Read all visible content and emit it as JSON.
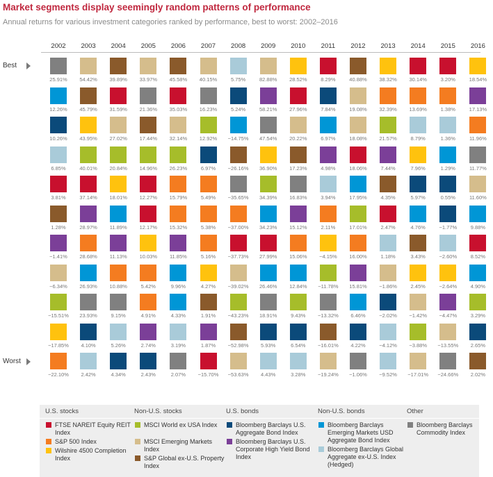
{
  "title": "Market segments display seemingly random patterns of performance",
  "subtitle": "Annual returns for various investment categories ranked by performance, best to worst: 2002–2016",
  "rank_labels": {
    "best": "Best",
    "worst": "Worst"
  },
  "colors": {
    "ftse_nareit": "#c8102e",
    "sp500": "#f47c20",
    "wilshire4500": "#ffc20e",
    "msci_world": "#a6bd2a",
    "msci_em": "#d5bd8c",
    "sp_global_prop": "#8a5a2b",
    "bb_us_agg": "#0b4a7a",
    "bb_us_hy": "#7b3f98",
    "bb_em_usd": "#0096d6",
    "bb_global_agg": "#a9cbd9",
    "bb_commodity": "#808080"
  },
  "chart_data": {
    "type": "table",
    "years": [
      "2002",
      "2003",
      "2004",
      "2005",
      "2006",
      "2007",
      "2008",
      "2009",
      "2010",
      "2011",
      "2012",
      "2013",
      "2014",
      "2015",
      "2016"
    ],
    "columns": [
      {
        "year": "2002",
        "cells": [
          [
            "bb_commodity",
            "25.91%"
          ],
          [
            "bb_em_usd",
            "12.26%"
          ],
          [
            "bb_us_agg",
            "10.26%"
          ],
          [
            "bb_global_agg",
            "6.85%"
          ],
          [
            "ftse_nareit",
            "3.81%"
          ],
          [
            "sp_global_prop",
            "1.28%"
          ],
          [
            "bb_us_hy",
            "−1.41%"
          ],
          [
            "msci_em",
            "−6.34%"
          ],
          [
            "msci_world",
            "−15.51%"
          ],
          [
            "wilshire4500",
            "−17.85%"
          ],
          [
            "sp500",
            "−22.10%"
          ]
        ]
      },
      {
        "year": "2003",
        "cells": [
          [
            "msci_em",
            "54.42%"
          ],
          [
            "sp_global_prop",
            "45.79%"
          ],
          [
            "wilshire4500",
            "43.95%"
          ],
          [
            "msci_world",
            "40.01%"
          ],
          [
            "ftse_nareit",
            "37.14%"
          ],
          [
            "bb_us_hy",
            "28.97%"
          ],
          [
            "sp500",
            "28.68%"
          ],
          [
            "bb_em_usd",
            "26.93%"
          ],
          [
            "bb_commodity",
            "23.93%"
          ],
          [
            "bb_us_agg",
            "4.10%"
          ],
          [
            "bb_global_agg",
            "2.42%"
          ]
        ]
      },
      {
        "year": "2004",
        "cells": [
          [
            "sp_global_prop",
            "39.89%"
          ],
          [
            "ftse_nareit",
            "31.59%"
          ],
          [
            "msci_em",
            "27.02%"
          ],
          [
            "msci_world",
            "20.84%"
          ],
          [
            "wilshire4500",
            "18.01%"
          ],
          [
            "bb_em_usd",
            "11.89%"
          ],
          [
            "bb_us_hy",
            "11.13%"
          ],
          [
            "sp500",
            "10.88%"
          ],
          [
            "bb_commodity",
            "9.15%"
          ],
          [
            "bb_global_agg",
            "5.26%"
          ],
          [
            "bb_us_agg",
            "4.34%"
          ]
        ]
      },
      {
        "year": "2005",
        "cells": [
          [
            "msci_em",
            "33.97%"
          ],
          [
            "bb_commodity",
            "21.36%"
          ],
          [
            "sp_global_prop",
            "17.44%"
          ],
          [
            "msci_world",
            "14.96%"
          ],
          [
            "ftse_nareit",
            "12.27%"
          ],
          [
            "ftse_nareit",
            "12.17%"
          ],
          [
            "wilshire4500",
            "10.03%"
          ],
          [
            "sp500",
            "5.42%"
          ],
          [
            "sp500",
            "4.91%"
          ],
          [
            "bb_us_hy",
            "2.74%"
          ],
          [
            "bb_us_agg",
            "2.43%"
          ]
        ]
      },
      {
        "year": "2006",
        "cells": [
          [
            "sp_global_prop",
            "45.58%"
          ],
          [
            "ftse_nareit",
            "35.03%"
          ],
          [
            "msci_em",
            "32.14%"
          ],
          [
            "msci_world",
            "26.23%"
          ],
          [
            "sp500",
            "15.79%"
          ],
          [
            "sp500",
            "15.32%"
          ],
          [
            "bb_us_hy",
            "11.85%"
          ],
          [
            "bb_em_usd",
            "9.96%"
          ],
          [
            "bb_em_usd",
            "4.33%"
          ],
          [
            "bb_global_agg",
            "3.19%"
          ],
          [
            "bb_commodity",
            "2.07%"
          ]
        ]
      },
      {
        "year": "2007",
        "cells": [
          [
            "msci_em",
            "40.15%"
          ],
          [
            "bb_commodity",
            "16.23%"
          ],
          [
            "msci_world",
            "12.92%"
          ],
          [
            "bb_us_agg",
            "6.97%"
          ],
          [
            "sp500",
            "5.49%"
          ],
          [
            "sp500",
            "5.38%"
          ],
          [
            "sp500",
            "5.16%"
          ],
          [
            "wilshire4500",
            "4.27%"
          ],
          [
            "sp_global_prop",
            "1.91%"
          ],
          [
            "bb_us_hy",
            "1.87%"
          ],
          [
            "ftse_nareit",
            "−15.70%"
          ]
        ]
      },
      {
        "year": "2008",
        "cells": [
          [
            "bb_global_agg",
            "5.75%"
          ],
          [
            "bb_us_agg",
            "5.24%"
          ],
          [
            "bb_em_usd",
            "−14.75%"
          ],
          [
            "sp_global_prop",
            "−26.16%"
          ],
          [
            "bb_commodity",
            "−35.65%"
          ],
          [
            "sp500",
            "−37.00%"
          ],
          [
            "ftse_nareit",
            "−37.73%"
          ],
          [
            "msci_em",
            "−39.02%"
          ],
          [
            "msci_world",
            "−43.23%"
          ],
          [
            "sp_global_prop",
            "−52.98%"
          ],
          [
            "msci_em",
            "−53.63%"
          ]
        ]
      },
      {
        "year": "2009",
        "cells": [
          [
            "msci_em",
            "82.88%"
          ],
          [
            "bb_us_hy",
            "58.21%"
          ],
          [
            "bb_commodity",
            "47.54%"
          ],
          [
            "wilshire4500",
            "36.90%"
          ],
          [
            "msci_world",
            "34.39%"
          ],
          [
            "bb_em_usd",
            "34.23%"
          ],
          [
            "ftse_nareit",
            "27.99%"
          ],
          [
            "bb_em_usd",
            "26.46%"
          ],
          [
            "bb_commodity",
            "18.91%"
          ],
          [
            "bb_us_agg",
            "5.93%"
          ],
          [
            "bb_global_agg",
            "4.43%"
          ]
        ]
      },
      {
        "year": "2010",
        "cells": [
          [
            "wilshire4500",
            "28.52%"
          ],
          [
            "ftse_nareit",
            "27.96%"
          ],
          [
            "msci_em",
            "20.22%"
          ],
          [
            "sp_global_prop",
            "17.23%"
          ],
          [
            "bb_commodity",
            "16.83%"
          ],
          [
            "bb_us_hy",
            "15.12%"
          ],
          [
            "sp500",
            "15.06%"
          ],
          [
            "bb_em_usd",
            "12.84%"
          ],
          [
            "msci_world",
            "9.43%"
          ],
          [
            "bb_us_agg",
            "6.54%"
          ],
          [
            "bb_global_agg",
            "3.28%"
          ]
        ]
      },
      {
        "year": "2011",
        "cells": [
          [
            "ftse_nareit",
            "8.29%"
          ],
          [
            "bb_us_agg",
            "7.84%"
          ],
          [
            "bb_em_usd",
            "6.97%"
          ],
          [
            "bb_us_hy",
            "4.98%"
          ],
          [
            "bb_global_agg",
            "3.94%"
          ],
          [
            "sp500",
            "2.11%"
          ],
          [
            "wilshire4500",
            "−4.15%"
          ],
          [
            "msci_world",
            "−11.78%"
          ],
          [
            "bb_commodity",
            "−13.32%"
          ],
          [
            "sp_global_prop",
            "−16.01%"
          ],
          [
            "msci_em",
            "−19.24%"
          ]
        ]
      },
      {
        "year": "2012",
        "cells": [
          [
            "sp_global_prop",
            "40.88%"
          ],
          [
            "msci_em",
            "19.08%"
          ],
          [
            "msci_em",
            "18.08%"
          ],
          [
            "ftse_nareit",
            "18.06%"
          ],
          [
            "bb_em_usd",
            "17.95%"
          ],
          [
            "msci_world",
            "17.01%"
          ],
          [
            "sp500",
            "16.00%"
          ],
          [
            "bb_us_hy",
            "15.81%"
          ],
          [
            "bb_em_usd",
            "6.46%"
          ],
          [
            "bb_us_agg",
            "4.22%"
          ],
          [
            "bb_commodity",
            "−1.06%"
          ]
        ]
      },
      {
        "year": "2013",
        "cells": [
          [
            "wilshire4500",
            "38.32%"
          ],
          [
            "sp500",
            "32.39%"
          ],
          [
            "msci_world",
            "21.57%"
          ],
          [
            "bb_us_hy",
            "7.44%"
          ],
          [
            "sp_global_prop",
            "4.35%"
          ],
          [
            "ftse_nareit",
            "2.47%"
          ],
          [
            "bb_global_agg",
            "1.18%"
          ],
          [
            "msci_em",
            "−1.86%"
          ],
          [
            "bb_us_agg",
            "−2.02%"
          ],
          [
            "bb_global_agg",
            "−4.12%"
          ],
          [
            "bb_global_agg",
            "−9.52%"
          ]
        ]
      },
      {
        "year": "2014",
        "cells": [
          [
            "ftse_nareit",
            "30.14%"
          ],
          [
            "sp500",
            "13.69%"
          ],
          [
            "bb_global_agg",
            "8.79%"
          ],
          [
            "wilshire4500",
            "7.96%"
          ],
          [
            "bb_us_agg",
            "5.97%"
          ],
          [
            "bb_em_usd",
            "4.76%"
          ],
          [
            "sp_global_prop",
            "3.43%"
          ],
          [
            "wilshire4500",
            "2.45%"
          ],
          [
            "msci_em",
            "−1.42%"
          ],
          [
            "msci_world",
            "−3.88%"
          ],
          [
            "msci_em",
            "−17.01%"
          ]
        ]
      },
      {
        "year": "2015",
        "cells": [
          [
            "ftse_nareit",
            "3.20%"
          ],
          [
            "sp500",
            "1.38%"
          ],
          [
            "bb_global_agg",
            "1.36%"
          ],
          [
            "bb_em_usd",
            "1.29%"
          ],
          [
            "bb_us_agg",
            "0.55%"
          ],
          [
            "bb_us_agg",
            "−1.77%"
          ],
          [
            "bb_global_agg",
            "−2.60%"
          ],
          [
            "wilshire4500",
            "−2.64%"
          ],
          [
            "bb_us_hy",
            "−4.47%"
          ],
          [
            "msci_em",
            "−13.55%"
          ],
          [
            "bb_commodity",
            "−24.66%"
          ]
        ]
      },
      {
        "year": "2016",
        "cells": [
          [
            "wilshire4500",
            "18.54%"
          ],
          [
            "bb_us_hy",
            "17.13%"
          ],
          [
            "sp500",
            "11.96%"
          ],
          [
            "bb_commodity",
            "11.77%"
          ],
          [
            "msci_em",
            "11.60%"
          ],
          [
            "bb_em_usd",
            "9.88%"
          ],
          [
            "ftse_nareit",
            "8.52%"
          ],
          [
            "bb_em_usd",
            "4.90%"
          ],
          [
            "msci_world",
            "3.29%"
          ],
          [
            "bb_us_agg",
            "2.65%"
          ],
          [
            "sp_global_prop",
            "2.02%"
          ]
        ]
      }
    ],
    "legend": [
      {
        "group": "U.S. stocks",
        "items": [
          {
            "key": "ftse_nareit",
            "label": "FTSE NAREIT Equity REIT Index"
          },
          {
            "key": "sp500",
            "label": "S&P 500 Index"
          },
          {
            "key": "wilshire4500",
            "label": "Wilshire 4500 Completion Index"
          }
        ]
      },
      {
        "group": "Non-U.S. stocks",
        "items": [
          {
            "key": "msci_world",
            "label": "MSCI World ex USA Index"
          },
          {
            "key": "msci_em",
            "label": "MSCI Emerging Markets Index"
          },
          {
            "key": "sp_global_prop",
            "label": "S&P Global ex-U.S. Property Index"
          }
        ]
      },
      {
        "group": "U.S. bonds",
        "items": [
          {
            "key": "bb_us_agg",
            "label": "Bloomberg Barclays U.S. Aggregate Bond Index"
          },
          {
            "key": "bb_us_hy",
            "label": "Bloomberg Barclays U.S. Corporate High Yield Bond Index"
          }
        ]
      },
      {
        "group": "Non-U.S. bonds",
        "items": [
          {
            "key": "bb_em_usd",
            "label": "Bloomberg Barclays Emerging Markets USD Aggregate Bond Index"
          },
          {
            "key": "bb_global_agg",
            "label": "Bloomberg Barclays Global Aggregate ex-U.S. Index (Hedged)"
          }
        ]
      },
      {
        "group": "Other",
        "items": [
          {
            "key": "bb_commodity",
            "label": "Bloomberg Barclays Commodity Index"
          }
        ]
      }
    ]
  }
}
